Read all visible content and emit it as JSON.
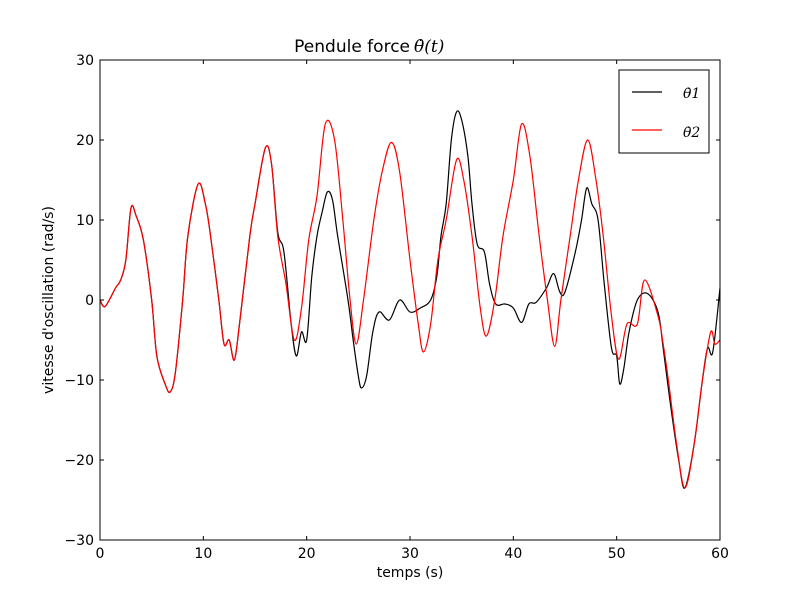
{
  "chart_data": {
    "type": "line",
    "title": "Pendule force",
    "title_math": "θ̇(t)",
    "xlabel": "temps (s)",
    "ylabel": "vitesse d'oscillation (rad/s)",
    "xlim": [
      0,
      60
    ],
    "ylim": [
      -30,
      30
    ],
    "xticks": [
      "0",
      "10",
      "20",
      "30",
      "40",
      "50",
      "60"
    ],
    "yticks": [
      "−30",
      "−20",
      "−10",
      "0",
      "10",
      "20",
      "30"
    ],
    "grid": false,
    "legend": "top-right",
    "series": [
      {
        "name": "θ̇1",
        "color": "#000000",
        "x": [
          0,
          0.5,
          1.5,
          2,
          2.5,
          3,
          3.5,
          4.2,
          5,
          5.5,
          6.3,
          6.8,
          7.3,
          8,
          8.5,
          9.5,
          10.2,
          10.7,
          11.5,
          12,
          12.5,
          13,
          13.5,
          14.5,
          15,
          16,
          16.6,
          17.2,
          17.8,
          18.5,
          19,
          19.5,
          20,
          20.5,
          21,
          21.5,
          22,
          22.5,
          23,
          24,
          24.5,
          25,
          25.3,
          25.8,
          26.4,
          27,
          28,
          29,
          30,
          31,
          32,
          32.6,
          33,
          33.5,
          34,
          34.5,
          35,
          35.6,
          36,
          36.5,
          37.2,
          37.7,
          38.3,
          39.2,
          40,
          40.8,
          41.5,
          42.2,
          43.2,
          43.9,
          44.5,
          45,
          46,
          46.6,
          47.1,
          47.6,
          48.2,
          48.8,
          49.5,
          50,
          50.3,
          50.7,
          51.2,
          52,
          53,
          54,
          54.5,
          55.2,
          56,
          56.6,
          57.5,
          58.3,
          58.8,
          59.3,
          60
        ],
        "y": [
          0,
          -0.8,
          1.5,
          2.5,
          5,
          11.5,
          10.5,
          7.5,
          0,
          -7,
          -10.5,
          -11.5,
          -9,
          0,
          8,
          14.5,
          12,
          8,
          0,
          -5.5,
          -5,
          -7.5,
          -3,
          8,
          12,
          19,
          17,
          8.5,
          6,
          -3,
          -7,
          -4,
          -5,
          3,
          8,
          11,
          13.5,
          12.5,
          8,
          0,
          -5,
          -9.5,
          -11,
          -9.5,
          -4,
          -1.5,
          -2.5,
          0,
          -1.5,
          -1,
          0,
          3,
          8,
          12,
          20,
          23.5,
          22.5,
          18,
          12,
          7,
          6,
          2,
          -0.5,
          -0.5,
          -1,
          -2.8,
          -0.5,
          -0.3,
          1.5,
          3.3,
          1,
          1,
          6,
          10,
          14,
          12,
          10,
          2,
          -6,
          -7,
          -10.5,
          -8.5,
          -4,
          0,
          0.8,
          -1.5,
          -6,
          -13,
          -20,
          -23.5,
          -18,
          -10,
          -6,
          -6.5,
          1.5
        ]
      },
      {
        "name": "θ̇2",
        "color": "#ff0000",
        "x": [
          0,
          0.5,
          1.5,
          2,
          2.5,
          3,
          3.5,
          4.2,
          5,
          5.5,
          6.3,
          6.8,
          7.3,
          8,
          8.5,
          9.5,
          10.2,
          10.7,
          11.5,
          12,
          12.5,
          13,
          13.5,
          14.5,
          15,
          16,
          16.6,
          17.2,
          18,
          18.8,
          19.5,
          20.2,
          21,
          21.8,
          22.7,
          23.5,
          24.2,
          24.8,
          25.5,
          26.5,
          27.3,
          28.2,
          29,
          30,
          30.8,
          31.3,
          32,
          32.7,
          33.5,
          34.5,
          35.2,
          36,
          36.8,
          37.4,
          38.2,
          39,
          40,
          40.8,
          41.6,
          42.5,
          43.3,
          44,
          44.6,
          45.5,
          46.3,
          47.2,
          48,
          48.7,
          49.5,
          50.2,
          51,
          52,
          52.7,
          54,
          54.5,
          55,
          55.8,
          56.6,
          57.5,
          58.3,
          59.1,
          59.5,
          60
        ],
        "y": [
          0,
          -0.8,
          1.5,
          2.5,
          5,
          11.5,
          10.5,
          7.5,
          0,
          -7,
          -10.5,
          -11.5,
          -9,
          0,
          8,
          14.5,
          12,
          8,
          0,
          -5.5,
          -5,
          -7.5,
          -3,
          8,
          12,
          19,
          17,
          8,
          2,
          -5,
          -1,
          7.5,
          13,
          22,
          20,
          10,
          0,
          -5.5,
          0,
          10,
          16,
          19.7,
          16,
          5,
          -3,
          -6.5,
          -3,
          5,
          10,
          17.5,
          15,
          8,
          -1,
          -4.5,
          0,
          8,
          15,
          22,
          18,
          8,
          0,
          -5.8,
          0,
          8,
          15,
          20,
          15,
          8,
          -2,
          -7.4,
          -3,
          -3,
          2.5,
          -2,
          -5.5,
          -10,
          -18,
          -23.5,
          -18,
          -10,
          -4,
          -5.5,
          -5
        ]
      }
    ]
  }
}
